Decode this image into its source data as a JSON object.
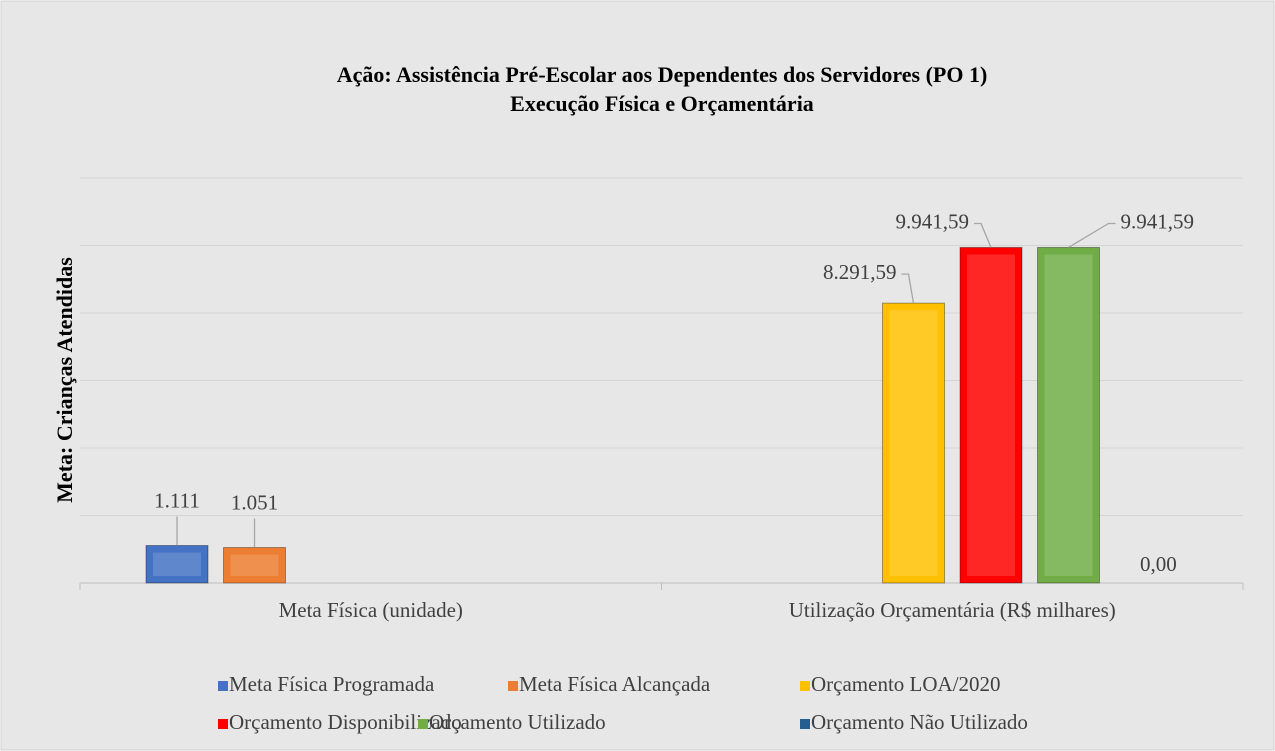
{
  "chart_data": {
    "type": "bar",
    "title": "Ação: Assistência Pré-Escolar aos Dependentes dos Servidores (PO 1)",
    "subtitle": "Execução Física e Orçamentária",
    "y_label": "Meta: Crianças Atendidas",
    "categories": [
      "Meta Física (unidade)",
      "Utilização Orçamentária (R$ milhares)"
    ],
    "series": [
      {
        "name": "Meta Física Programada",
        "color": "#4472c4",
        "values": [
          1111,
          null
        ],
        "value_labels": [
          "1.111",
          null
        ]
      },
      {
        "name": "Meta Física Alcançada",
        "color": "#ed7d31",
        "values": [
          1051,
          null
        ],
        "value_labels": [
          "1.051",
          null
        ]
      },
      {
        "name": "Orçamento LOA/2020",
        "color": "#ffc000",
        "values": [
          null,
          8291.59
        ],
        "value_labels": [
          null,
          "8.291,59"
        ]
      },
      {
        "name": "Orçamento Disponibilizado",
        "color": "#ff0000",
        "values": [
          null,
          9941.59
        ],
        "value_labels": [
          null,
          "9.941,59"
        ]
      },
      {
        "name": "Orçamento Utilizado",
        "color": "#70ad47",
        "values": [
          null,
          9941.59
        ],
        "value_labels": [
          null,
          "9.941,59"
        ]
      },
      {
        "name": "Orçamento Não Utilizado",
        "color": "#255e91",
        "values": [
          null,
          0
        ],
        "value_labels": [
          null,
          "0,00"
        ]
      }
    ],
    "ylim": [
      0,
      12000
    ],
    "yticks": [
      0,
      2000,
      4000,
      6000,
      8000,
      10000,
      12000
    ],
    "grid": true
  }
}
